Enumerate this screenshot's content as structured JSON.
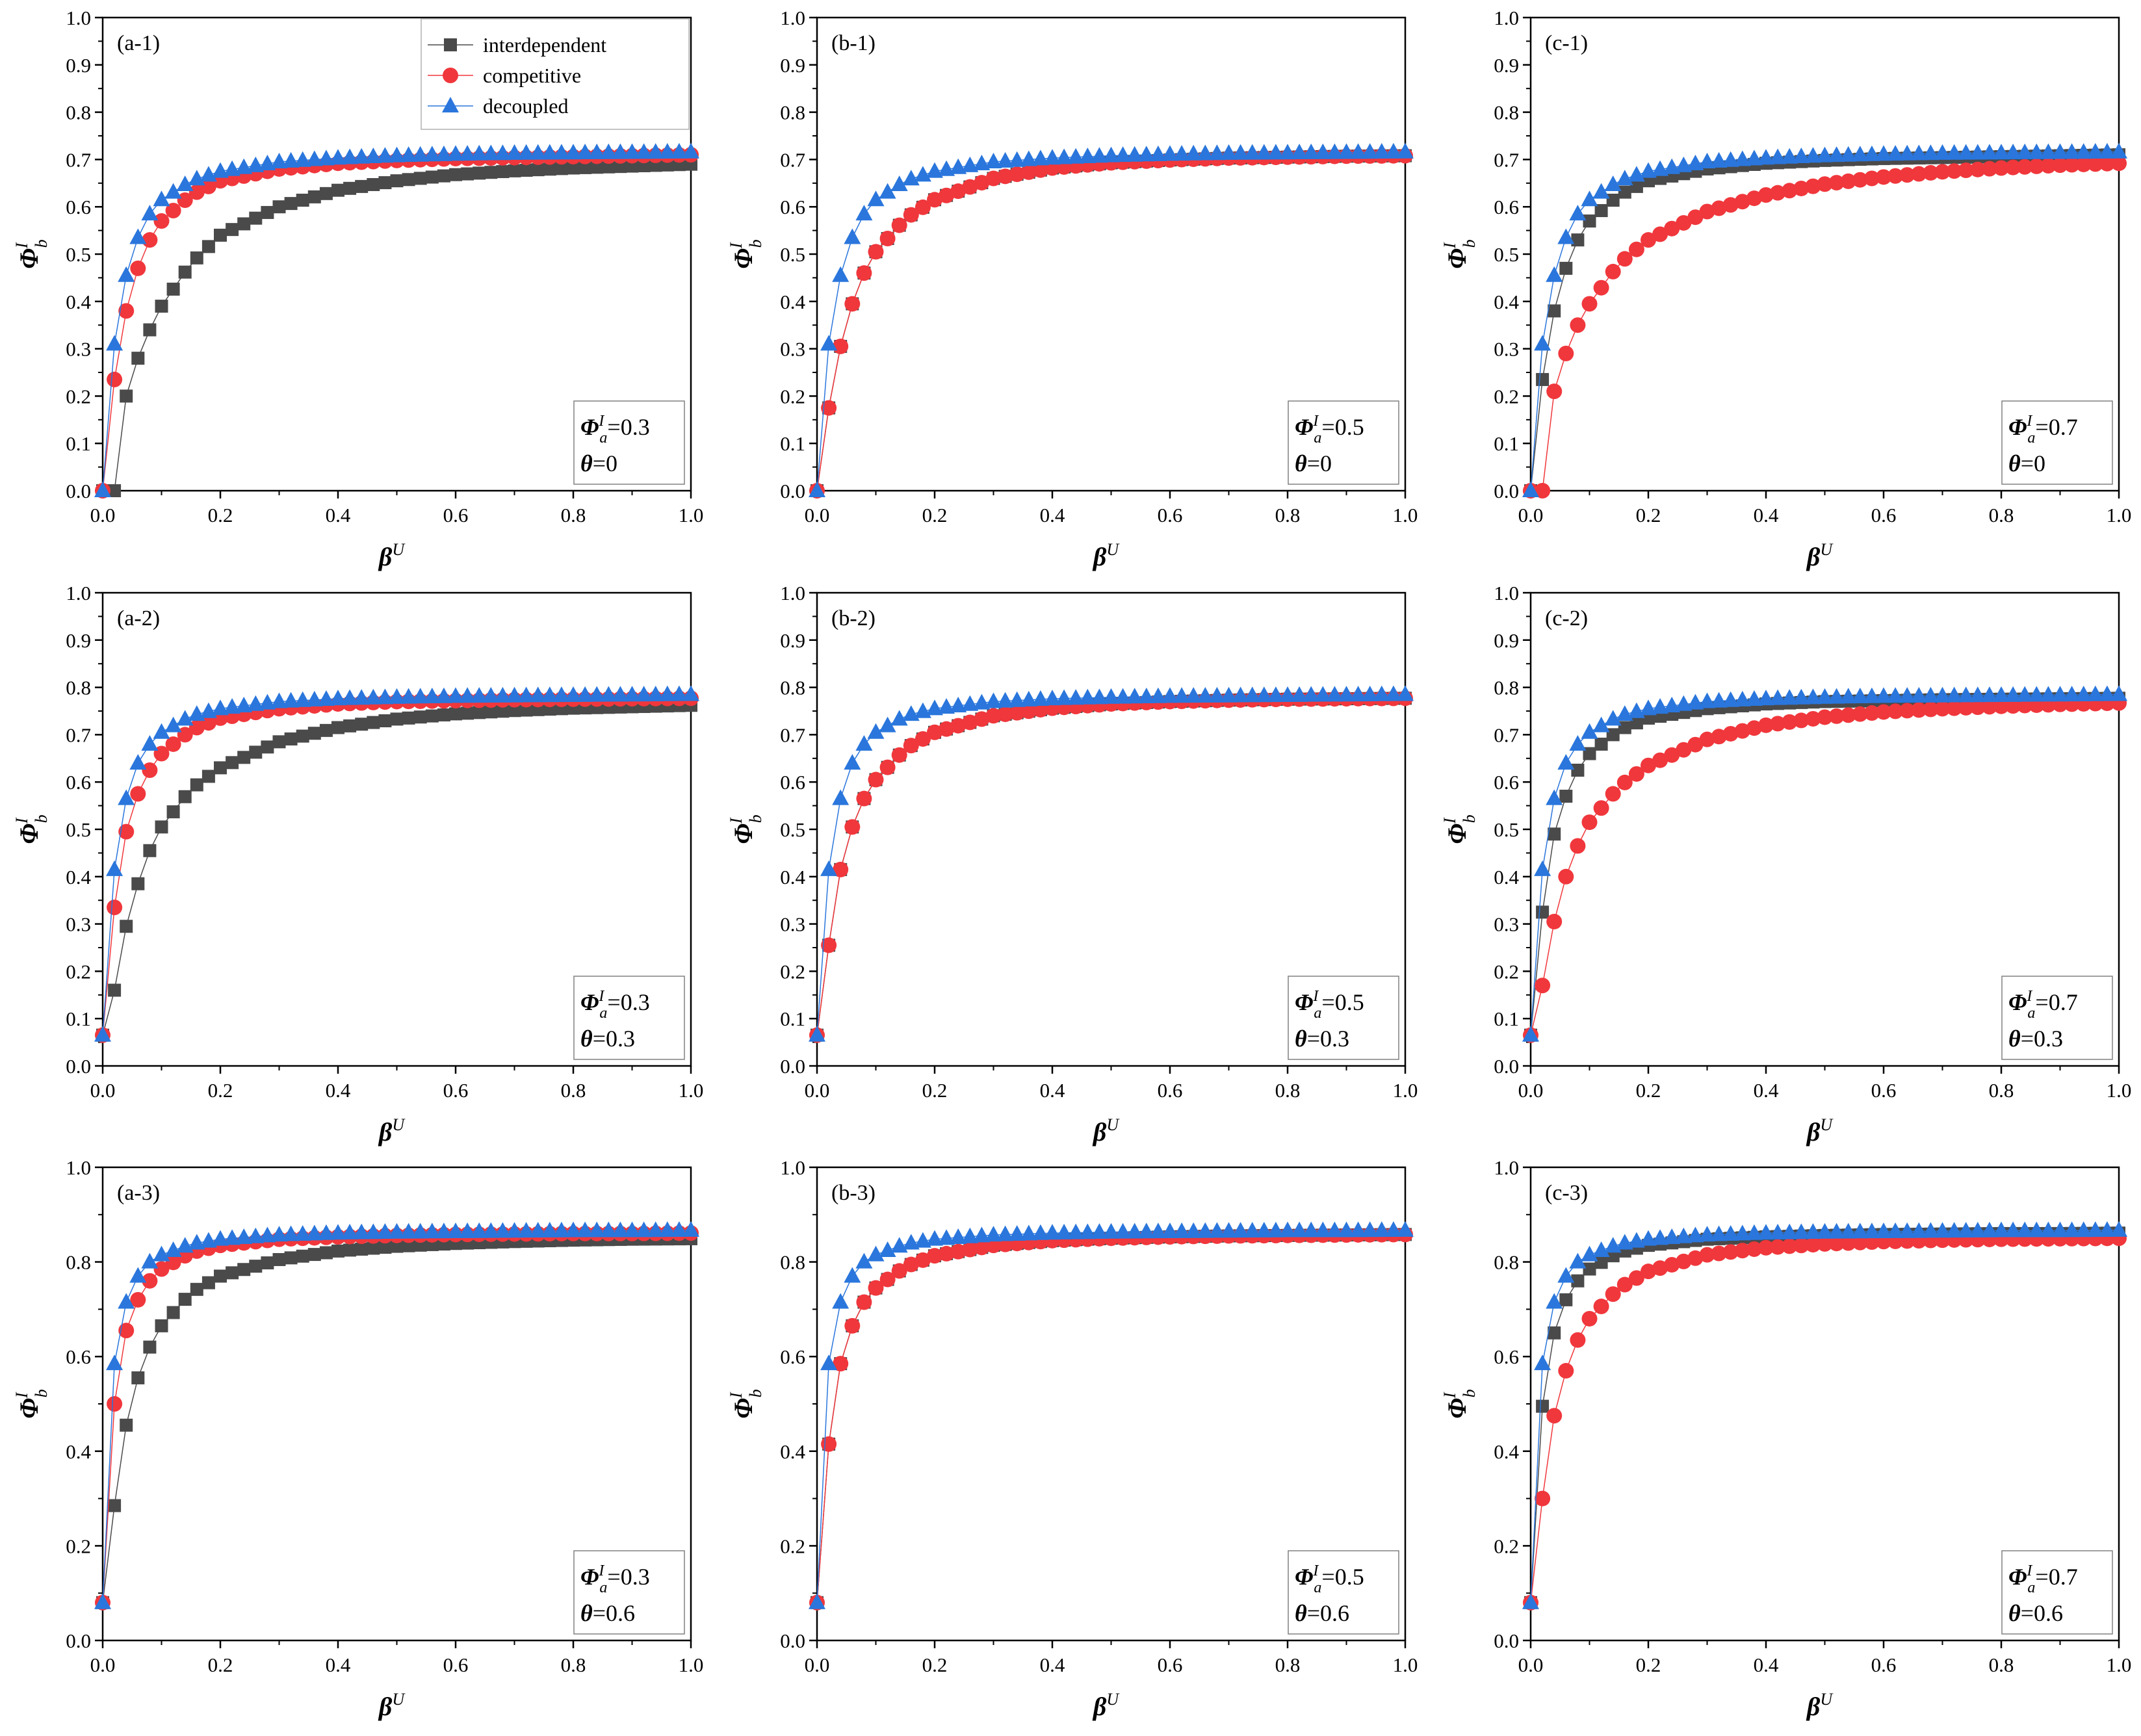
{
  "figure": {
    "legend": [
      {
        "key": "interdependent",
        "label": "interdependent",
        "marker": "square"
      },
      {
        "key": "competitive",
        "label": "competitive",
        "marker": "circle"
      },
      {
        "key": "decoupled",
        "label": "decoupled",
        "marker": "triangle"
      }
    ],
    "colors": {
      "interdependent": "#4a4a4a",
      "competitive": "#f0373c",
      "decoupled": "#2a76dc",
      "axis": "#000000",
      "background": "#ffffff"
    }
  },
  "chart_data": [
    {
      "id": "a1",
      "type": "line",
      "title": "(a-1)",
      "xlabel": "βU",
      "ylabel": "ΦIb",
      "xlim": [
        0,
        1
      ],
      "ylim": [
        0,
        1
      ],
      "yticks": [
        0,
        0.1,
        0.2,
        0.3,
        0.4,
        0.5,
        0.6,
        0.7,
        0.8,
        0.9,
        1.0
      ],
      "xticks": [
        0,
        0.2,
        0.4,
        0.6,
        0.8,
        1.0
      ],
      "x": [
        0.0,
        0.02,
        0.04,
        0.06,
        0.08,
        0.1,
        0.15,
        0.2,
        0.3,
        0.4,
        0.5,
        0.6,
        0.7,
        0.8,
        0.9,
        1.0
      ],
      "series": [
        {
          "name": "interdependent",
          "values": [
            0.0,
            0.0,
            0.2,
            0.28,
            0.34,
            0.39,
            0.48,
            0.54,
            0.6,
            0.635,
            0.655,
            0.668,
            0.676,
            0.682,
            0.686,
            0.69
          ]
        },
        {
          "name": "competitive",
          "values": [
            0.0,
            0.235,
            0.38,
            0.47,
            0.53,
            0.57,
            0.625,
            0.655,
            0.68,
            0.692,
            0.698,
            0.702,
            0.704,
            0.706,
            0.708,
            0.71
          ]
        },
        {
          "name": "decoupled",
          "values": [
            0.0,
            0.31,
            0.455,
            0.535,
            0.585,
            0.615,
            0.655,
            0.675,
            0.695,
            0.703,
            0.708,
            0.711,
            0.713,
            0.714,
            0.715,
            0.716
          ]
        }
      ],
      "param_label": "Φ",
      "param_sup": "I",
      "param_sub": "a",
      "param_value": "=0.3",
      "theta_label": "θ",
      "theta_value": "=0"
    },
    {
      "id": "b1",
      "type": "line",
      "title": "(b-1)",
      "xlabel": "βU",
      "ylabel": "ΦIb",
      "xlim": [
        0,
        1
      ],
      "ylim": [
        0,
        1
      ],
      "yticks": [
        0,
        0.1,
        0.2,
        0.3,
        0.4,
        0.5,
        0.6,
        0.7,
        0.8,
        0.9,
        1.0
      ],
      "xticks": [
        0,
        0.2,
        0.4,
        0.6,
        0.8,
        1.0
      ],
      "x": [
        0.0,
        0.02,
        0.04,
        0.06,
        0.08,
        0.1,
        0.15,
        0.2,
        0.3,
        0.4,
        0.5,
        0.6,
        0.7,
        0.8,
        0.9,
        1.0
      ],
      "series": [
        {
          "name": "interdependent",
          "values": [
            0.0,
            0.175,
            0.305,
            0.395,
            0.46,
            0.505,
            0.575,
            0.615,
            0.66,
            0.682,
            0.693,
            0.699,
            0.703,
            0.705,
            0.707,
            0.708
          ]
        },
        {
          "name": "competitive",
          "values": [
            0.0,
            0.175,
            0.305,
            0.395,
            0.46,
            0.505,
            0.575,
            0.615,
            0.66,
            0.682,
            0.693,
            0.699,
            0.703,
            0.705,
            0.707,
            0.708
          ]
        },
        {
          "name": "decoupled",
          "values": [
            0.0,
            0.31,
            0.455,
            0.535,
            0.585,
            0.615,
            0.655,
            0.675,
            0.695,
            0.703,
            0.708,
            0.711,
            0.713,
            0.714,
            0.715,
            0.716
          ]
        }
      ],
      "param_label": "Φ",
      "param_sup": "I",
      "param_sub": "a",
      "param_value": "=0.5",
      "theta_label": "θ",
      "theta_value": "=0"
    },
    {
      "id": "c1",
      "type": "line",
      "title": "(c-1)",
      "xlabel": "βU",
      "ylabel": "ΦIb",
      "xlim": [
        0,
        1
      ],
      "ylim": [
        0,
        1
      ],
      "yticks": [
        0,
        0.1,
        0.2,
        0.3,
        0.4,
        0.5,
        0.6,
        0.7,
        0.8,
        0.9,
        1.0
      ],
      "xticks": [
        0,
        0.2,
        0.4,
        0.6,
        0.8,
        1.0
      ],
      "x": [
        0.0,
        0.02,
        0.04,
        0.06,
        0.08,
        0.1,
        0.15,
        0.2,
        0.3,
        0.4,
        0.5,
        0.6,
        0.7,
        0.8,
        0.9,
        1.0
      ],
      "series": [
        {
          "name": "interdependent",
          "values": [
            0.0,
            0.235,
            0.38,
            0.47,
            0.53,
            0.57,
            0.625,
            0.655,
            0.68,
            0.692,
            0.698,
            0.702,
            0.704,
            0.706,
            0.708,
            0.71
          ]
        },
        {
          "name": "competitive",
          "values": [
            0.0,
            0.0,
            0.21,
            0.29,
            0.35,
            0.395,
            0.48,
            0.53,
            0.59,
            0.625,
            0.648,
            0.663,
            0.674,
            0.682,
            0.688,
            0.692
          ]
        },
        {
          "name": "decoupled",
          "values": [
            0.0,
            0.31,
            0.455,
            0.535,
            0.585,
            0.615,
            0.655,
            0.675,
            0.695,
            0.703,
            0.708,
            0.711,
            0.713,
            0.714,
            0.715,
            0.716
          ]
        }
      ],
      "param_label": "Φ",
      "param_sup": "I",
      "param_sub": "a",
      "param_value": "=0.7",
      "theta_label": "θ",
      "theta_value": "=0"
    },
    {
      "id": "a2",
      "type": "line",
      "title": "(a-2)",
      "xlabel": "βU",
      "ylabel": "ΦIb",
      "xlim": [
        0,
        1
      ],
      "ylim": [
        0,
        1
      ],
      "yticks": [
        0,
        0.1,
        0.2,
        0.3,
        0.4,
        0.5,
        0.6,
        0.7,
        0.8,
        0.9,
        1.0
      ],
      "xticks": [
        0,
        0.2,
        0.4,
        0.6,
        0.8,
        1.0
      ],
      "x": [
        0.0,
        0.02,
        0.04,
        0.06,
        0.08,
        0.1,
        0.15,
        0.2,
        0.3,
        0.4,
        0.5,
        0.6,
        0.7,
        0.8,
        0.9,
        1.0
      ],
      "series": [
        {
          "name": "interdependent",
          "values": [
            0.065,
            0.16,
            0.295,
            0.385,
            0.455,
            0.505,
            0.585,
            0.63,
            0.685,
            0.715,
            0.733,
            0.744,
            0.751,
            0.756,
            0.759,
            0.762
          ]
        },
        {
          "name": "competitive",
          "values": [
            0.065,
            0.335,
            0.495,
            0.575,
            0.625,
            0.66,
            0.71,
            0.735,
            0.755,
            0.765,
            0.77,
            0.772,
            0.774,
            0.775,
            0.776,
            0.777
          ]
        },
        {
          "name": "decoupled",
          "values": [
            0.065,
            0.415,
            0.565,
            0.64,
            0.68,
            0.705,
            0.74,
            0.755,
            0.77,
            0.776,
            0.779,
            0.781,
            0.782,
            0.783,
            0.784,
            0.785
          ]
        }
      ],
      "param_label": "Φ",
      "param_sup": "I",
      "param_sub": "a",
      "param_value": "=0.3",
      "theta_label": "θ",
      "theta_value": "=0.3"
    },
    {
      "id": "b2",
      "type": "line",
      "title": "(b-2)",
      "xlabel": "βU",
      "ylabel": "ΦIb",
      "xlim": [
        0,
        1
      ],
      "ylim": [
        0,
        1
      ],
      "yticks": [
        0,
        0.1,
        0.2,
        0.3,
        0.4,
        0.5,
        0.6,
        0.7,
        0.8,
        0.9,
        1.0
      ],
      "xticks": [
        0,
        0.2,
        0.4,
        0.6,
        0.8,
        1.0
      ],
      "x": [
        0.0,
        0.02,
        0.04,
        0.06,
        0.08,
        0.1,
        0.15,
        0.2,
        0.3,
        0.4,
        0.5,
        0.6,
        0.7,
        0.8,
        0.9,
        1.0
      ],
      "series": [
        {
          "name": "interdependent",
          "values": [
            0.065,
            0.255,
            0.415,
            0.505,
            0.565,
            0.605,
            0.67,
            0.705,
            0.74,
            0.756,
            0.765,
            0.77,
            0.773,
            0.775,
            0.776,
            0.777
          ]
        },
        {
          "name": "competitive",
          "values": [
            0.065,
            0.255,
            0.415,
            0.505,
            0.565,
            0.605,
            0.67,
            0.705,
            0.74,
            0.756,
            0.765,
            0.77,
            0.773,
            0.775,
            0.776,
            0.777
          ]
        },
        {
          "name": "decoupled",
          "values": [
            0.065,
            0.415,
            0.565,
            0.64,
            0.68,
            0.705,
            0.74,
            0.755,
            0.77,
            0.776,
            0.779,
            0.781,
            0.782,
            0.783,
            0.784,
            0.785
          ]
        }
      ],
      "param_label": "Φ",
      "param_sup": "I",
      "param_sub": "a",
      "param_value": "=0.5",
      "theta_label": "θ",
      "theta_value": "=0.3"
    },
    {
      "id": "c2",
      "type": "line",
      "title": "(c-2)",
      "xlabel": "βU",
      "ylabel": "ΦIb",
      "xlim": [
        0,
        1
      ],
      "ylim": [
        0,
        1
      ],
      "yticks": [
        0,
        0.1,
        0.2,
        0.3,
        0.4,
        0.5,
        0.6,
        0.7,
        0.8,
        0.9,
        1.0
      ],
      "xticks": [
        0,
        0.2,
        0.4,
        0.6,
        0.8,
        1.0
      ],
      "x": [
        0.0,
        0.02,
        0.04,
        0.06,
        0.08,
        0.1,
        0.15,
        0.2,
        0.3,
        0.4,
        0.5,
        0.6,
        0.7,
        0.8,
        0.9,
        1.0
      ],
      "series": [
        {
          "name": "interdependent",
          "values": [
            0.065,
            0.325,
            0.49,
            0.57,
            0.625,
            0.66,
            0.71,
            0.735,
            0.755,
            0.765,
            0.77,
            0.772,
            0.774,
            0.775,
            0.776,
            0.777
          ]
        },
        {
          "name": "competitive",
          "values": [
            0.065,
            0.17,
            0.305,
            0.4,
            0.465,
            0.515,
            0.59,
            0.635,
            0.69,
            0.72,
            0.737,
            0.748,
            0.755,
            0.76,
            0.764,
            0.767
          ]
        },
        {
          "name": "decoupled",
          "values": [
            0.065,
            0.415,
            0.565,
            0.64,
            0.68,
            0.705,
            0.74,
            0.755,
            0.77,
            0.776,
            0.779,
            0.781,
            0.782,
            0.783,
            0.784,
            0.785
          ]
        }
      ],
      "param_label": "Φ",
      "param_sup": "I",
      "param_sub": "a",
      "param_value": "=0.7",
      "theta_label": "θ",
      "theta_value": "=0.3"
    },
    {
      "id": "a3",
      "type": "line",
      "title": "(a-3)",
      "xlabel": "βU",
      "ylabel": "ΦIb",
      "xlim": [
        0,
        1
      ],
      "ylim": [
        0,
        1
      ],
      "yticks": [
        0,
        0.2,
        0.4,
        0.6,
        0.8,
        1.0
      ],
      "xticks": [
        0,
        0.2,
        0.4,
        0.6,
        0.8,
        1.0
      ],
      "x": [
        0.0,
        0.02,
        0.04,
        0.06,
        0.08,
        0.1,
        0.15,
        0.2,
        0.3,
        0.4,
        0.5,
        0.6,
        0.7,
        0.8,
        0.9,
        1.0
      ],
      "series": [
        {
          "name": "interdependent",
          "values": [
            0.08,
            0.285,
            0.455,
            0.555,
            0.62,
            0.665,
            0.735,
            0.77,
            0.805,
            0.823,
            0.833,
            0.839,
            0.843,
            0.846,
            0.848,
            0.849
          ]
        },
        {
          "name": "competitive",
          "values": [
            0.08,
            0.5,
            0.655,
            0.72,
            0.76,
            0.785,
            0.82,
            0.835,
            0.848,
            0.853,
            0.856,
            0.858,
            0.859,
            0.86,
            0.86,
            0.861
          ]
        },
        {
          "name": "decoupled",
          "values": [
            0.08,
            0.585,
            0.715,
            0.77,
            0.8,
            0.815,
            0.838,
            0.848,
            0.857,
            0.861,
            0.863,
            0.864,
            0.865,
            0.866,
            0.866,
            0.867
          ]
        }
      ],
      "param_label": "Φ",
      "param_sup": "I",
      "param_sub": "a",
      "param_value": "=0.3",
      "theta_label": "θ",
      "theta_value": "=0.6"
    },
    {
      "id": "b3",
      "type": "line",
      "title": "(b-3)",
      "xlabel": "βU",
      "ylabel": "ΦIb",
      "xlim": [
        0,
        1
      ],
      "ylim": [
        0,
        1
      ],
      "yticks": [
        0,
        0.2,
        0.4,
        0.6,
        0.8,
        1.0
      ],
      "xticks": [
        0,
        0.2,
        0.4,
        0.6,
        0.8,
        1.0
      ],
      "x": [
        0.0,
        0.02,
        0.04,
        0.06,
        0.08,
        0.1,
        0.15,
        0.2,
        0.3,
        0.4,
        0.5,
        0.6,
        0.7,
        0.8,
        0.9,
        1.0
      ],
      "series": [
        {
          "name": "interdependent",
          "values": [
            0.08,
            0.415,
            0.585,
            0.665,
            0.715,
            0.745,
            0.79,
            0.813,
            0.835,
            0.845,
            0.85,
            0.853,
            0.855,
            0.856,
            0.857,
            0.858
          ]
        },
        {
          "name": "competitive",
          "values": [
            0.08,
            0.415,
            0.585,
            0.665,
            0.715,
            0.745,
            0.79,
            0.813,
            0.835,
            0.845,
            0.85,
            0.853,
            0.855,
            0.856,
            0.857,
            0.858
          ]
        },
        {
          "name": "decoupled",
          "values": [
            0.08,
            0.585,
            0.715,
            0.77,
            0.8,
            0.815,
            0.838,
            0.848,
            0.857,
            0.861,
            0.863,
            0.864,
            0.865,
            0.866,
            0.866,
            0.867
          ]
        }
      ],
      "param_label": "Φ",
      "param_sup": "I",
      "param_sub": "a",
      "param_value": "=0.5",
      "theta_label": "θ",
      "theta_value": "=0.6"
    },
    {
      "id": "c3",
      "type": "line",
      "title": "(c-3)",
      "xlabel": "βU",
      "ylabel": "ΦIb",
      "xlim": [
        0,
        1
      ],
      "ylim": [
        0,
        1
      ],
      "yticks": [
        0,
        0.2,
        0.4,
        0.6,
        0.8,
        1.0
      ],
      "xticks": [
        0,
        0.2,
        0.4,
        0.6,
        0.8,
        1.0
      ],
      "x": [
        0.0,
        0.02,
        0.04,
        0.06,
        0.08,
        0.1,
        0.15,
        0.2,
        0.3,
        0.4,
        0.5,
        0.6,
        0.7,
        0.8,
        0.9,
        1.0
      ],
      "series": [
        {
          "name": "interdependent",
          "values": [
            0.08,
            0.495,
            0.65,
            0.72,
            0.76,
            0.785,
            0.82,
            0.835,
            0.848,
            0.853,
            0.856,
            0.858,
            0.859,
            0.86,
            0.86,
            0.861
          ]
        },
        {
          "name": "competitive",
          "values": [
            0.08,
            0.3,
            0.475,
            0.57,
            0.635,
            0.68,
            0.745,
            0.78,
            0.815,
            0.83,
            0.838,
            0.843,
            0.846,
            0.848,
            0.849,
            0.85
          ]
        },
        {
          "name": "decoupled",
          "values": [
            0.08,
            0.585,
            0.715,
            0.77,
            0.8,
            0.815,
            0.838,
            0.848,
            0.857,
            0.861,
            0.863,
            0.864,
            0.865,
            0.866,
            0.866,
            0.867
          ]
        }
      ],
      "param_label": "Φ",
      "param_sup": "I",
      "param_sub": "a",
      "param_value": "=0.7",
      "theta_label": "θ",
      "theta_value": "=0.6"
    }
  ]
}
